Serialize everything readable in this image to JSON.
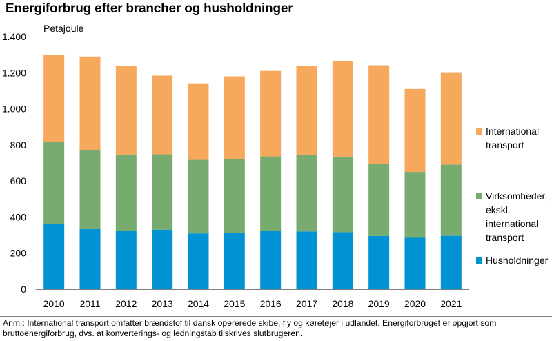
{
  "title": "Energiforbrug efter brancher og husholdninger",
  "note": "Anm.: International transport omfatter brændstof til dansk opererede skibe, fly og køretøjer i udlandet. Energiforbruget er opgjort som bruttoenergiforbrug, dvs. at konverterings- og ledningstab tilskrives slutbrugeren.",
  "chart_data": {
    "type": "bar",
    "stacked": true,
    "unit_label": "Petajoule",
    "categories": [
      "2010",
      "2011",
      "2012",
      "2013",
      "2014",
      "2015",
      "2016",
      "2017",
      "2018",
      "2019",
      "2020",
      "2021"
    ],
    "ylim": [
      0,
      1400
    ],
    "yticks": [
      0,
      200,
      400,
      600,
      800,
      1000,
      1200,
      1400
    ],
    "ytick_labels": [
      "0",
      "200",
      "400",
      "600",
      "800",
      "1.000",
      "1.200",
      "1.400"
    ],
    "grid": false,
    "legend_position": "right",
    "series": [
      {
        "name": "Husholdninger",
        "color": "#0092d3",
        "values": [
          362,
          333,
          325,
          330,
          309,
          313,
          322,
          320,
          316,
          295,
          285,
          296
        ]
      },
      {
        "name": "Virksomheder, ekskl. international transport",
        "color": "#78ab6f",
        "values": [
          456,
          439,
          422,
          418,
          408,
          408,
          414,
          423,
          419,
          400,
          365,
          395
        ]
      },
      {
        "name": "International transport",
        "color": "#f6a85c",
        "values": [
          479,
          518,
          489,
          436,
          424,
          459,
          474,
          494,
          530,
          546,
          460,
          508
        ]
      }
    ],
    "legend": [
      {
        "label": "International\ntransport",
        "color": "#f6a85c"
      },
      {
        "label": "Virksomheder,\neksk l.\ninternational\ntransport",
        "color": "#78ab6f"
      },
      {
        "label": "Husholdninger",
        "color": "#0092d3"
      }
    ]
  }
}
